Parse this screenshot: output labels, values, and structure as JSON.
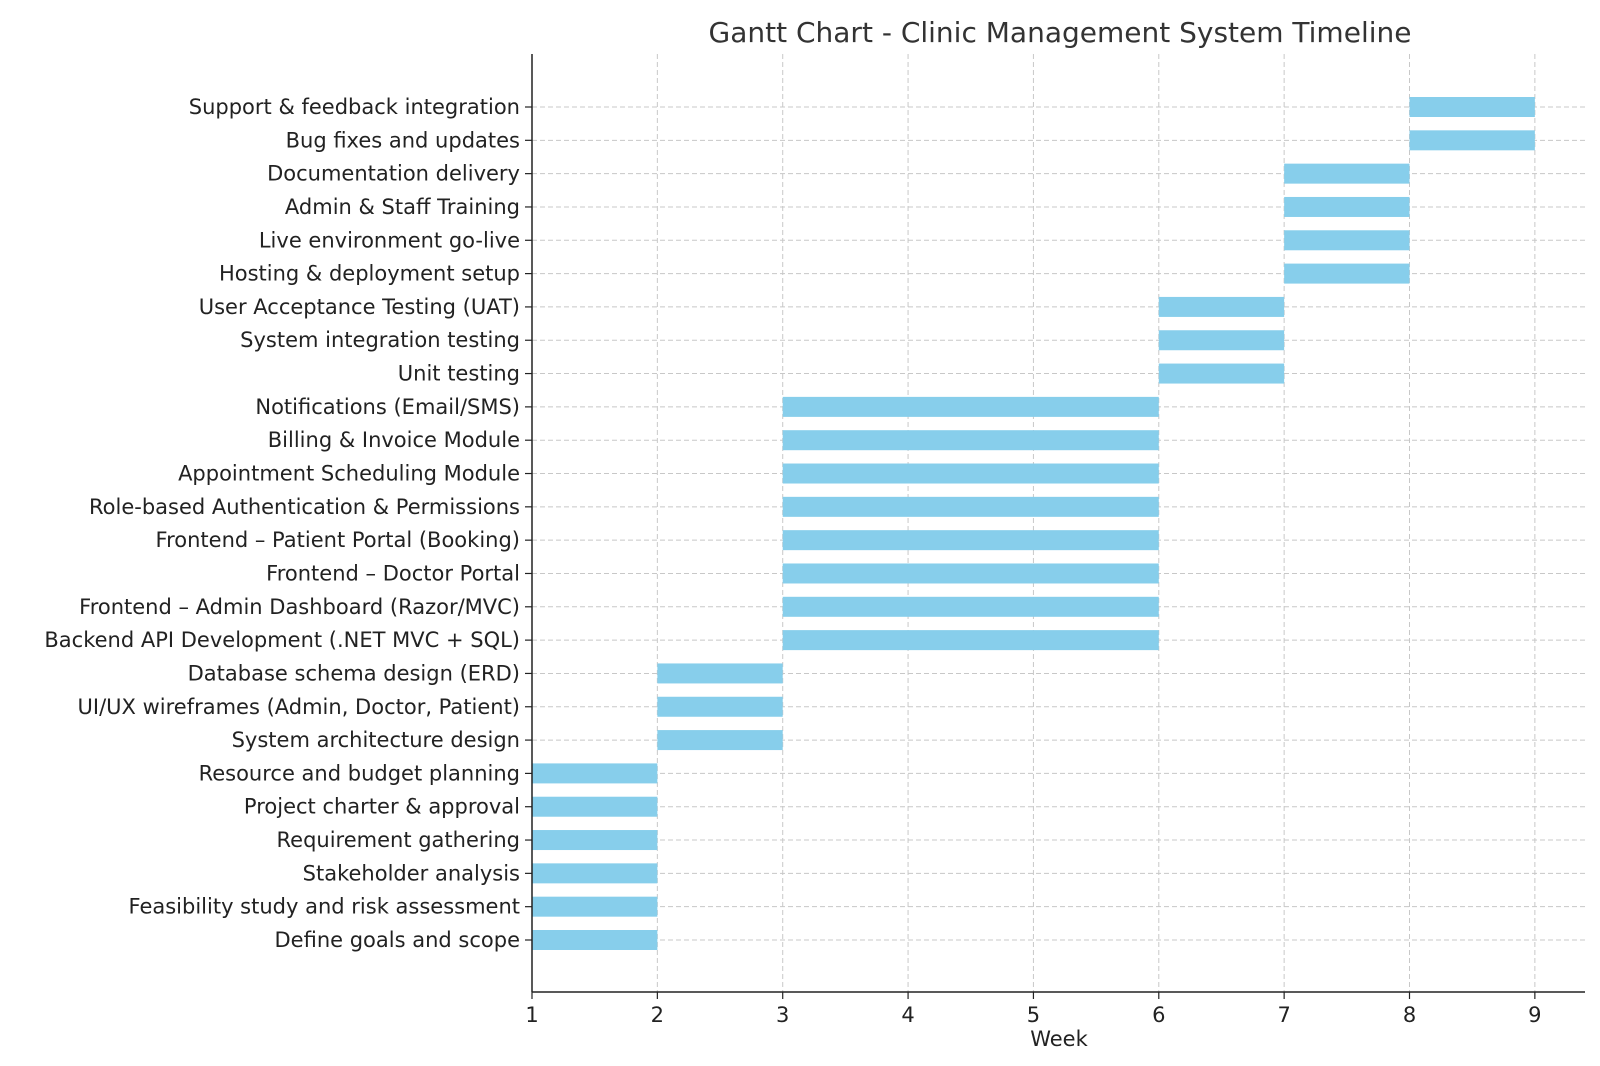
{
  "chart_data": {
    "type": "bar",
    "orientation": "horizontal",
    "title": "Gantt Chart - Clinic Management System Timeline",
    "xlabel": "Week",
    "ylabel": "",
    "xlim": [
      1,
      9.4
    ],
    "xticks": [
      1,
      2,
      3,
      4,
      5,
      6,
      7,
      8,
      9
    ],
    "grid": true,
    "bar_color": "#87CEEB",
    "tasks": [
      {
        "name": "Define goals and scope",
        "start": 1,
        "end": 2
      },
      {
        "name": "Feasibility study and risk assessment",
        "start": 1,
        "end": 2
      },
      {
        "name": "Stakeholder analysis",
        "start": 1,
        "end": 2
      },
      {
        "name": "Requirement gathering",
        "start": 1,
        "end": 2
      },
      {
        "name": "Project charter & approval",
        "start": 1,
        "end": 2
      },
      {
        "name": "Resource and budget planning",
        "start": 1,
        "end": 2
      },
      {
        "name": "System architecture design",
        "start": 2,
        "end": 3
      },
      {
        "name": "UI/UX wireframes (Admin, Doctor, Patient)",
        "start": 2,
        "end": 3
      },
      {
        "name": "Database schema design (ERD)",
        "start": 2,
        "end": 3
      },
      {
        "name": "Backend API Development (.NET MVC + SQL)",
        "start": 3,
        "end": 6
      },
      {
        "name": "Frontend – Admin Dashboard (Razor/MVC)",
        "start": 3,
        "end": 6
      },
      {
        "name": "Frontend – Doctor Portal",
        "start": 3,
        "end": 6
      },
      {
        "name": "Frontend – Patient Portal (Booking)",
        "start": 3,
        "end": 6
      },
      {
        "name": "Role-based Authentication & Permissions",
        "start": 3,
        "end": 6
      },
      {
        "name": "Appointment Scheduling Module",
        "start": 3,
        "end": 6
      },
      {
        "name": "Billing & Invoice Module",
        "start": 3,
        "end": 6
      },
      {
        "name": "Notifications (Email/SMS)",
        "start": 3,
        "end": 6
      },
      {
        "name": "Unit testing",
        "start": 6,
        "end": 7
      },
      {
        "name": "System integration testing",
        "start": 6,
        "end": 7
      },
      {
        "name": "User Acceptance Testing (UAT)",
        "start": 6,
        "end": 7
      },
      {
        "name": "Hosting & deployment setup",
        "start": 7,
        "end": 8
      },
      {
        "name": "Live environment go-live",
        "start": 7,
        "end": 8
      },
      {
        "name": "Admin & Staff Training",
        "start": 7,
        "end": 8
      },
      {
        "name": "Documentation delivery",
        "start": 7,
        "end": 8
      },
      {
        "name": "Bug fixes and updates",
        "start": 8,
        "end": 9
      },
      {
        "name": "Support & feedback integration",
        "start": 8,
        "end": 9
      }
    ]
  }
}
